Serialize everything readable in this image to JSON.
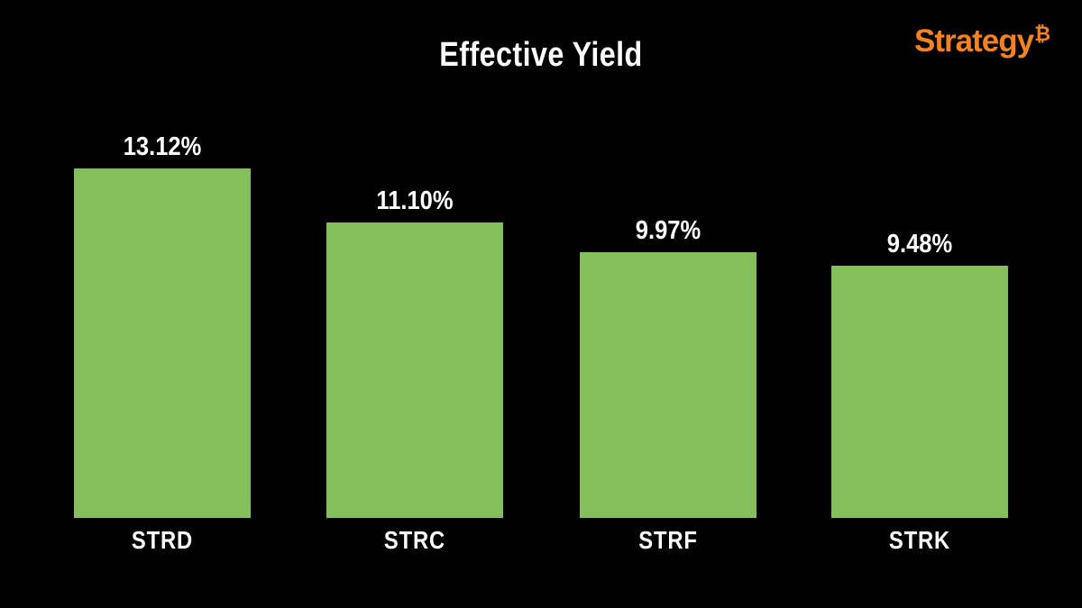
{
  "title": "Effective Yield",
  "logo": {
    "text": "Strategy",
    "btc_symbol": "₿",
    "color": "#F5821F"
  },
  "chart_data": {
    "type": "bar",
    "title": "Effective Yield",
    "categories": [
      "STRD",
      "STRC",
      "STRF",
      "STRK"
    ],
    "values": [
      13.12,
      11.1,
      9.97,
      9.48
    ],
    "labels": [
      "13.12%",
      "11.10%",
      "9.97%",
      "9.48%"
    ],
    "xlabel": "",
    "ylabel": "",
    "ylim": [
      0,
      14
    ],
    "grid": false,
    "legend": null,
    "bar_color": "#84BF5B",
    "label_color": "#FFFFFF",
    "background": "#000000"
  }
}
